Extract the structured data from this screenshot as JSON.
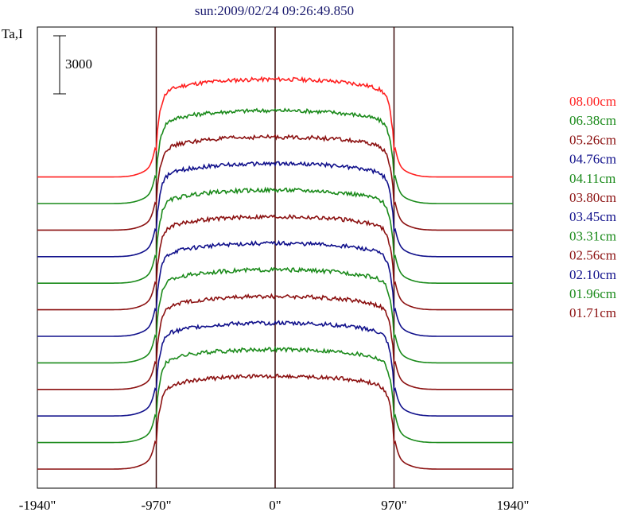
{
  "chart_data": {
    "type": "line",
    "title": "sun:2009/02/24 09:26:49.850",
    "ylabel": "Ta,I",
    "scale_bar_label": "3000",
    "xlim": [
      -1940,
      1940
    ],
    "x_ticks": [
      {
        "value": -1940,
        "label": "-1940\""
      },
      {
        "value": -970,
        "label": "-970\""
      },
      {
        "value": 0,
        "label": "0\""
      },
      {
        "value": 970,
        "label": "970\""
      },
      {
        "value": 1940,
        "label": "1940\""
      }
    ],
    "vertical_lines": [
      -970,
      0,
      970
    ],
    "series": [
      {
        "name": "08.00cm",
        "color": "#ff2020",
        "offset": 11,
        "amplitude": 1.05
      },
      {
        "name": "06.38cm",
        "color": "#1a8a1a",
        "offset": 10,
        "amplitude": 1.0
      },
      {
        "name": "05.26cm",
        "color": "#8b1010",
        "offset": 9,
        "amplitude": 1.0
      },
      {
        "name": "04.76cm",
        "color": "#10108b",
        "offset": 8,
        "amplitude": 1.0
      },
      {
        "name": "04.11cm",
        "color": "#1a8a1a",
        "offset": 7,
        "amplitude": 1.0
      },
      {
        "name": "03.80cm",
        "color": "#8b1010",
        "offset": 6,
        "amplitude": 1.0
      },
      {
        "name": "03.45cm",
        "color": "#10108b",
        "offset": 5,
        "amplitude": 1.0
      },
      {
        "name": "03.31cm",
        "color": "#1a8a1a",
        "offset": 4,
        "amplitude": 1.0
      },
      {
        "name": "02.56cm",
        "color": "#8b1010",
        "offset": 3,
        "amplitude": 1.0
      },
      {
        "name": "02.10cm",
        "color": "#10108b",
        "offset": 2,
        "amplitude": 1.0
      },
      {
        "name": "01.96cm",
        "color": "#1a8a1a",
        "offset": 1,
        "amplitude": 1.0
      },
      {
        "name": "01.71cm",
        "color": "#8b1010",
        "offset": 0,
        "amplitude": 1.0
      }
    ],
    "frame_color": "#000000",
    "vline_color": "#3a0a0a"
  }
}
